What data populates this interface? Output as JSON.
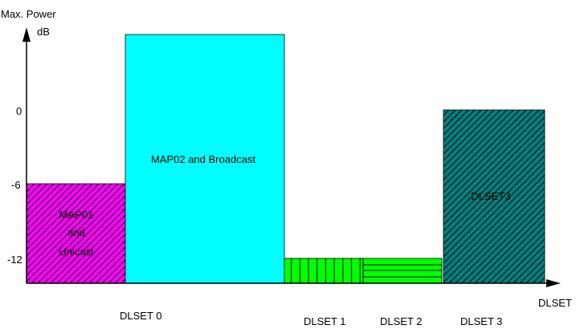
{
  "y_axis": {
    "title_line1": "Max. Power",
    "title_line2": "dB",
    "ticks": [
      "0",
      "-6",
      "-12"
    ]
  },
  "x_axis": {
    "title": "DLSET",
    "labels": [
      "DLSET 0",
      "DLSET 1",
      "DLSET 2",
      "DLSET 3"
    ]
  },
  "blocks": {
    "map01": {
      "line1": "MAP01",
      "line2": "and",
      "line3": "Unicast",
      "color": "#ff00ff",
      "pattern": "diagonal-hatch"
    },
    "map02": {
      "label": "MAP02 and Broadcast",
      "color": "#00ffff",
      "pattern": "solid"
    },
    "dlset1": {
      "color": "#00ff00",
      "pattern": "vertical-lines"
    },
    "dlset2": {
      "color": "#00ff00",
      "pattern": "horizontal-lines"
    },
    "dlset3": {
      "label": "DLSET3",
      "color": "#008080",
      "pattern": "diagonal-hatch"
    }
  }
}
